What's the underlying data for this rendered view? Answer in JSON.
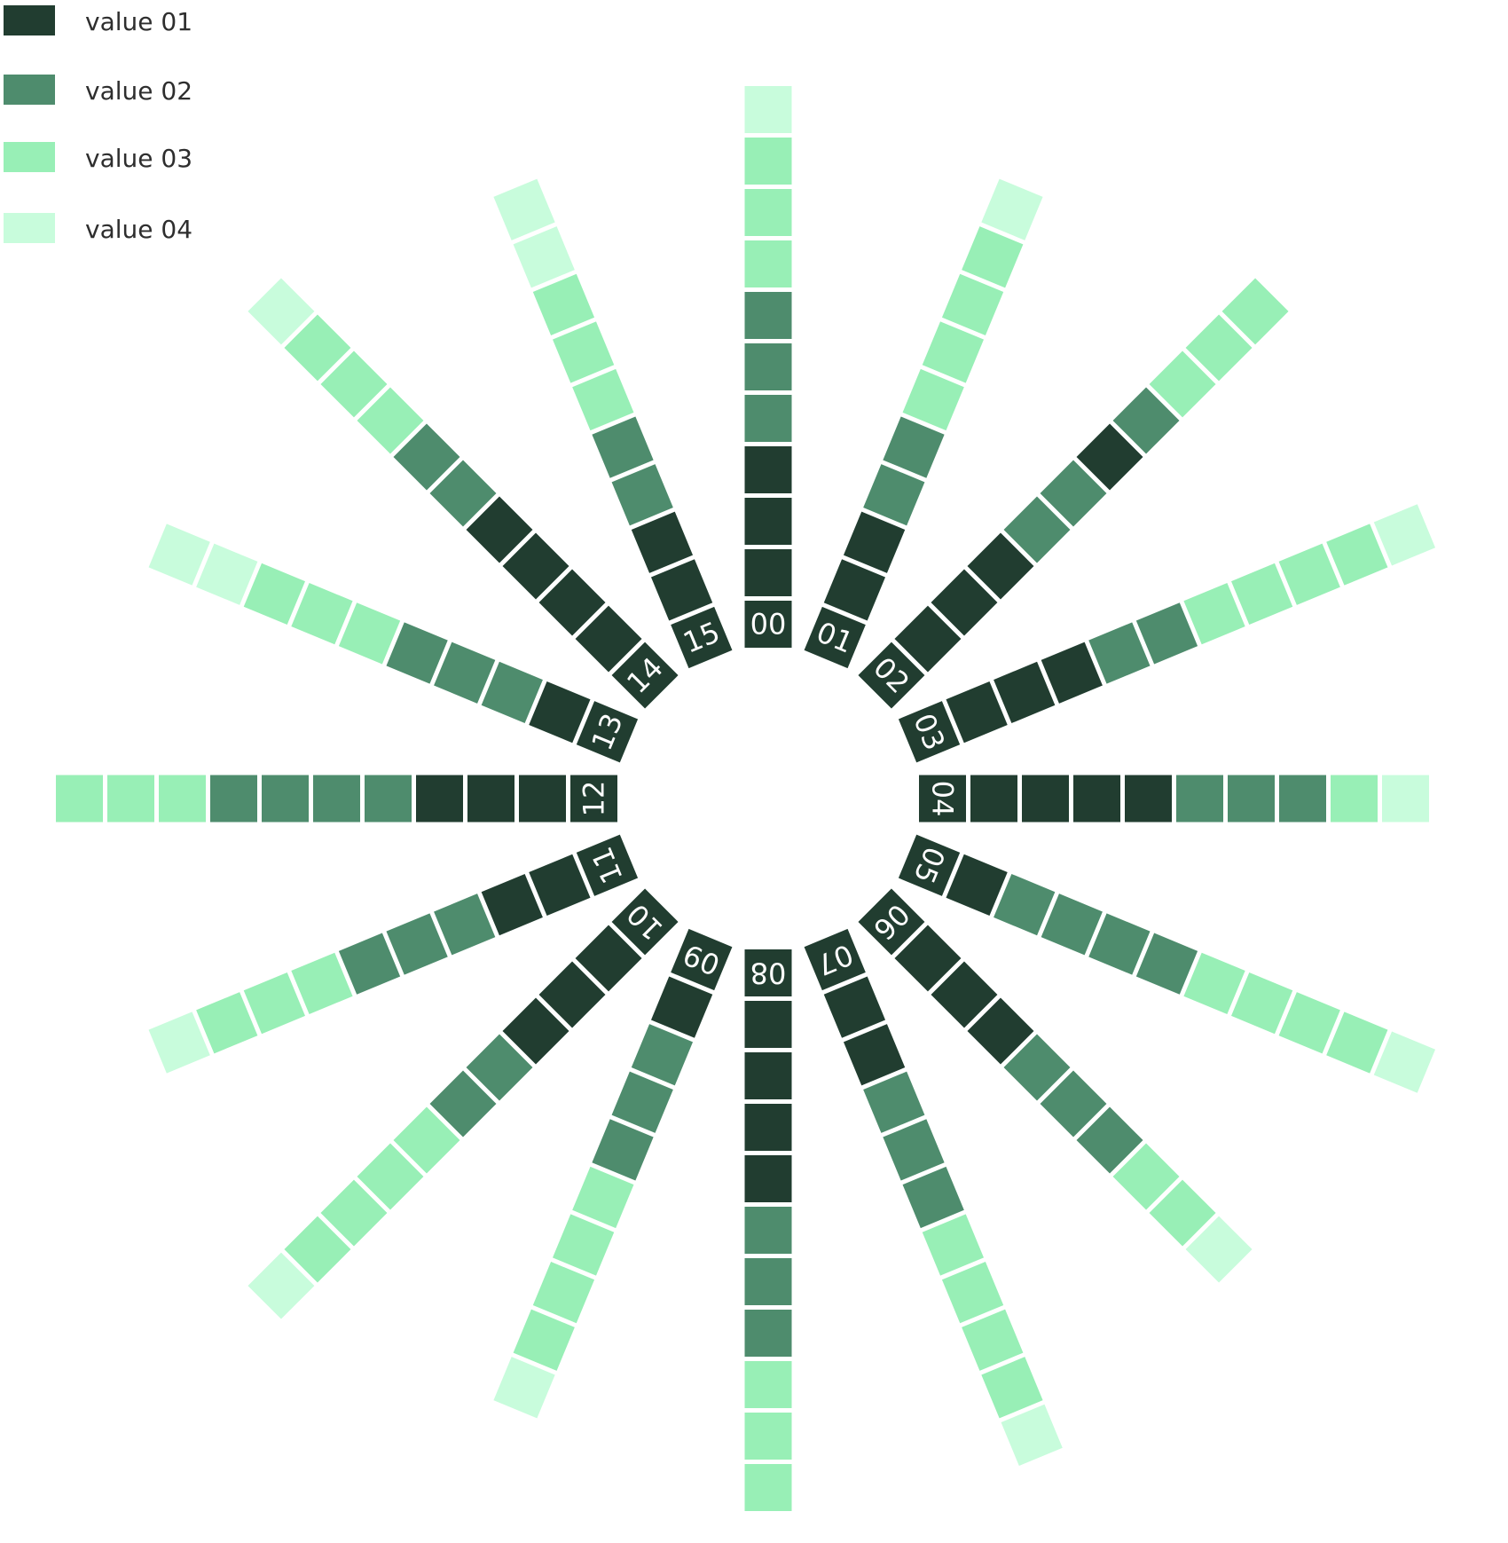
{
  "legend": {
    "items": [
      {
        "label": "value 01",
        "color": "#213d30"
      },
      {
        "label": "value 02",
        "color": "#4e8c6d"
      },
      {
        "label": "value 03",
        "color": "#98efb6"
      },
      {
        "label": "value 04",
        "color": "#c8fcdc"
      }
    ]
  },
  "chart_data": {
    "type": "radial-segment-bar",
    "title": "",
    "segment_colors": {
      "1": "#213d30",
      "2": "#4e8c6d",
      "3": "#98efb6",
      "4": "#c8fcdc"
    },
    "series_names": [
      "value 01",
      "value 02",
      "value 03",
      "value 04"
    ],
    "bars": [
      {
        "label": "00",
        "segments": [
          1,
          1,
          1,
          2,
          2,
          2,
          3,
          3,
          3,
          4
        ]
      },
      {
        "label": "01",
        "segments": [
          1,
          1,
          2,
          2,
          3,
          3,
          3,
          3,
          4
        ]
      },
      {
        "label": "02",
        "segments": [
          1,
          1,
          1,
          2,
          2,
          1,
          2,
          3,
          3,
          3
        ]
      },
      {
        "label": "03",
        "segments": [
          1,
          1,
          1,
          2,
          2,
          3,
          3,
          3,
          3,
          4
        ]
      },
      {
        "label": "04",
        "segments": [
          1,
          1,
          1,
          1,
          2,
          2,
          2,
          3,
          4
        ]
      },
      {
        "label": "05",
        "segments": [
          1,
          2,
          2,
          2,
          2,
          3,
          3,
          3,
          3,
          4
        ]
      },
      {
        "label": "06",
        "segments": [
          1,
          1,
          1,
          2,
          2,
          2,
          3,
          3,
          4
        ]
      },
      {
        "label": "07",
        "segments": [
          1,
          1,
          2,
          2,
          2,
          3,
          3,
          3,
          3,
          4
        ]
      },
      {
        "label": "08",
        "segments": [
          1,
          1,
          1,
          1,
          2,
          2,
          2,
          3,
          3,
          3
        ]
      },
      {
        "label": "09",
        "segments": [
          1,
          2,
          2,
          2,
          3,
          3,
          3,
          3,
          4
        ]
      },
      {
        "label": "10",
        "segments": [
          1,
          1,
          1,
          2,
          2,
          3,
          3,
          3,
          3,
          4
        ]
      },
      {
        "label": "11",
        "segments": [
          1,
          1,
          2,
          2,
          2,
          3,
          3,
          3,
          4
        ]
      },
      {
        "label": "12",
        "segments": [
          1,
          1,
          1,
          2,
          2,
          2,
          2,
          3,
          3,
          3
        ]
      },
      {
        "label": "13",
        "segments": [
          1,
          2,
          2,
          2,
          3,
          3,
          3,
          4,
          4
        ]
      },
      {
        "label": "14",
        "segments": [
          1,
          1,
          1,
          1,
          2,
          2,
          3,
          3,
          3,
          4
        ]
      },
      {
        "label": "15",
        "segments": [
          1,
          1,
          2,
          2,
          3,
          3,
          3,
          4,
          4
        ]
      }
    ]
  }
}
